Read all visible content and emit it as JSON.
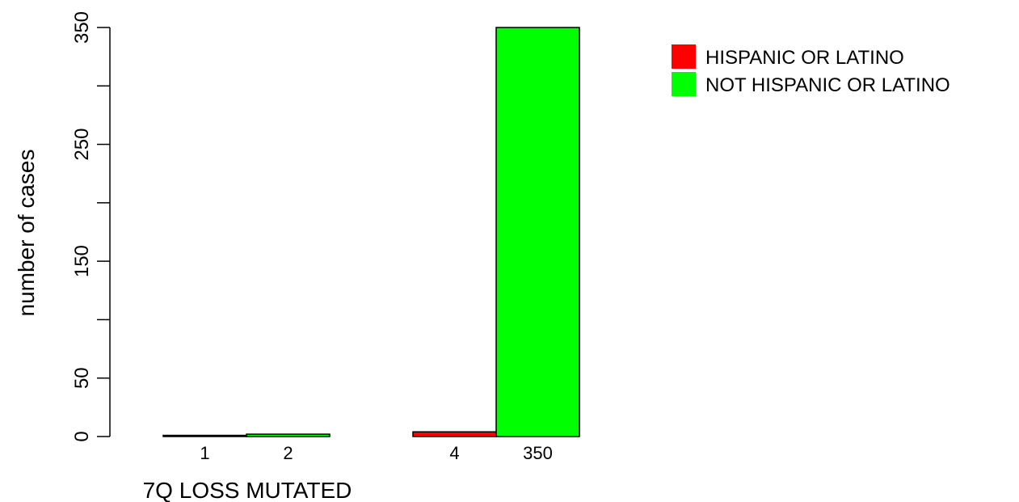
{
  "chart_data": {
    "type": "bar",
    "title": "",
    "xlabel": "7Q LOSS MUTATED",
    "ylabel": "number of cases",
    "ylim": [
      0,
      350
    ],
    "yticks": [
      0,
      50,
      150,
      250,
      350
    ],
    "ytick_marks": [
      0,
      50,
      100,
      150,
      200,
      250,
      300,
      350
    ],
    "groups": [
      {
        "bars": [
          {
            "series": "HISPANIC OR LATINO",
            "value": 1,
            "label": "1"
          },
          {
            "series": "NOT HISPANIC OR LATINO",
            "value": 2,
            "label": "2"
          }
        ]
      },
      {
        "bars": [
          {
            "series": "HISPANIC OR LATINO",
            "value": 4,
            "label": "4"
          },
          {
            "series": "NOT HISPANIC OR LATINO",
            "value": 350,
            "label": "350"
          }
        ]
      }
    ],
    "series": [
      {
        "name": "HISPANIC OR LATINO",
        "color": "#ff0000"
      },
      {
        "name": "NOT HISPANIC OR LATINO",
        "color": "#00ff00"
      }
    ],
    "legend_position": "top-right",
    "grid": false
  }
}
